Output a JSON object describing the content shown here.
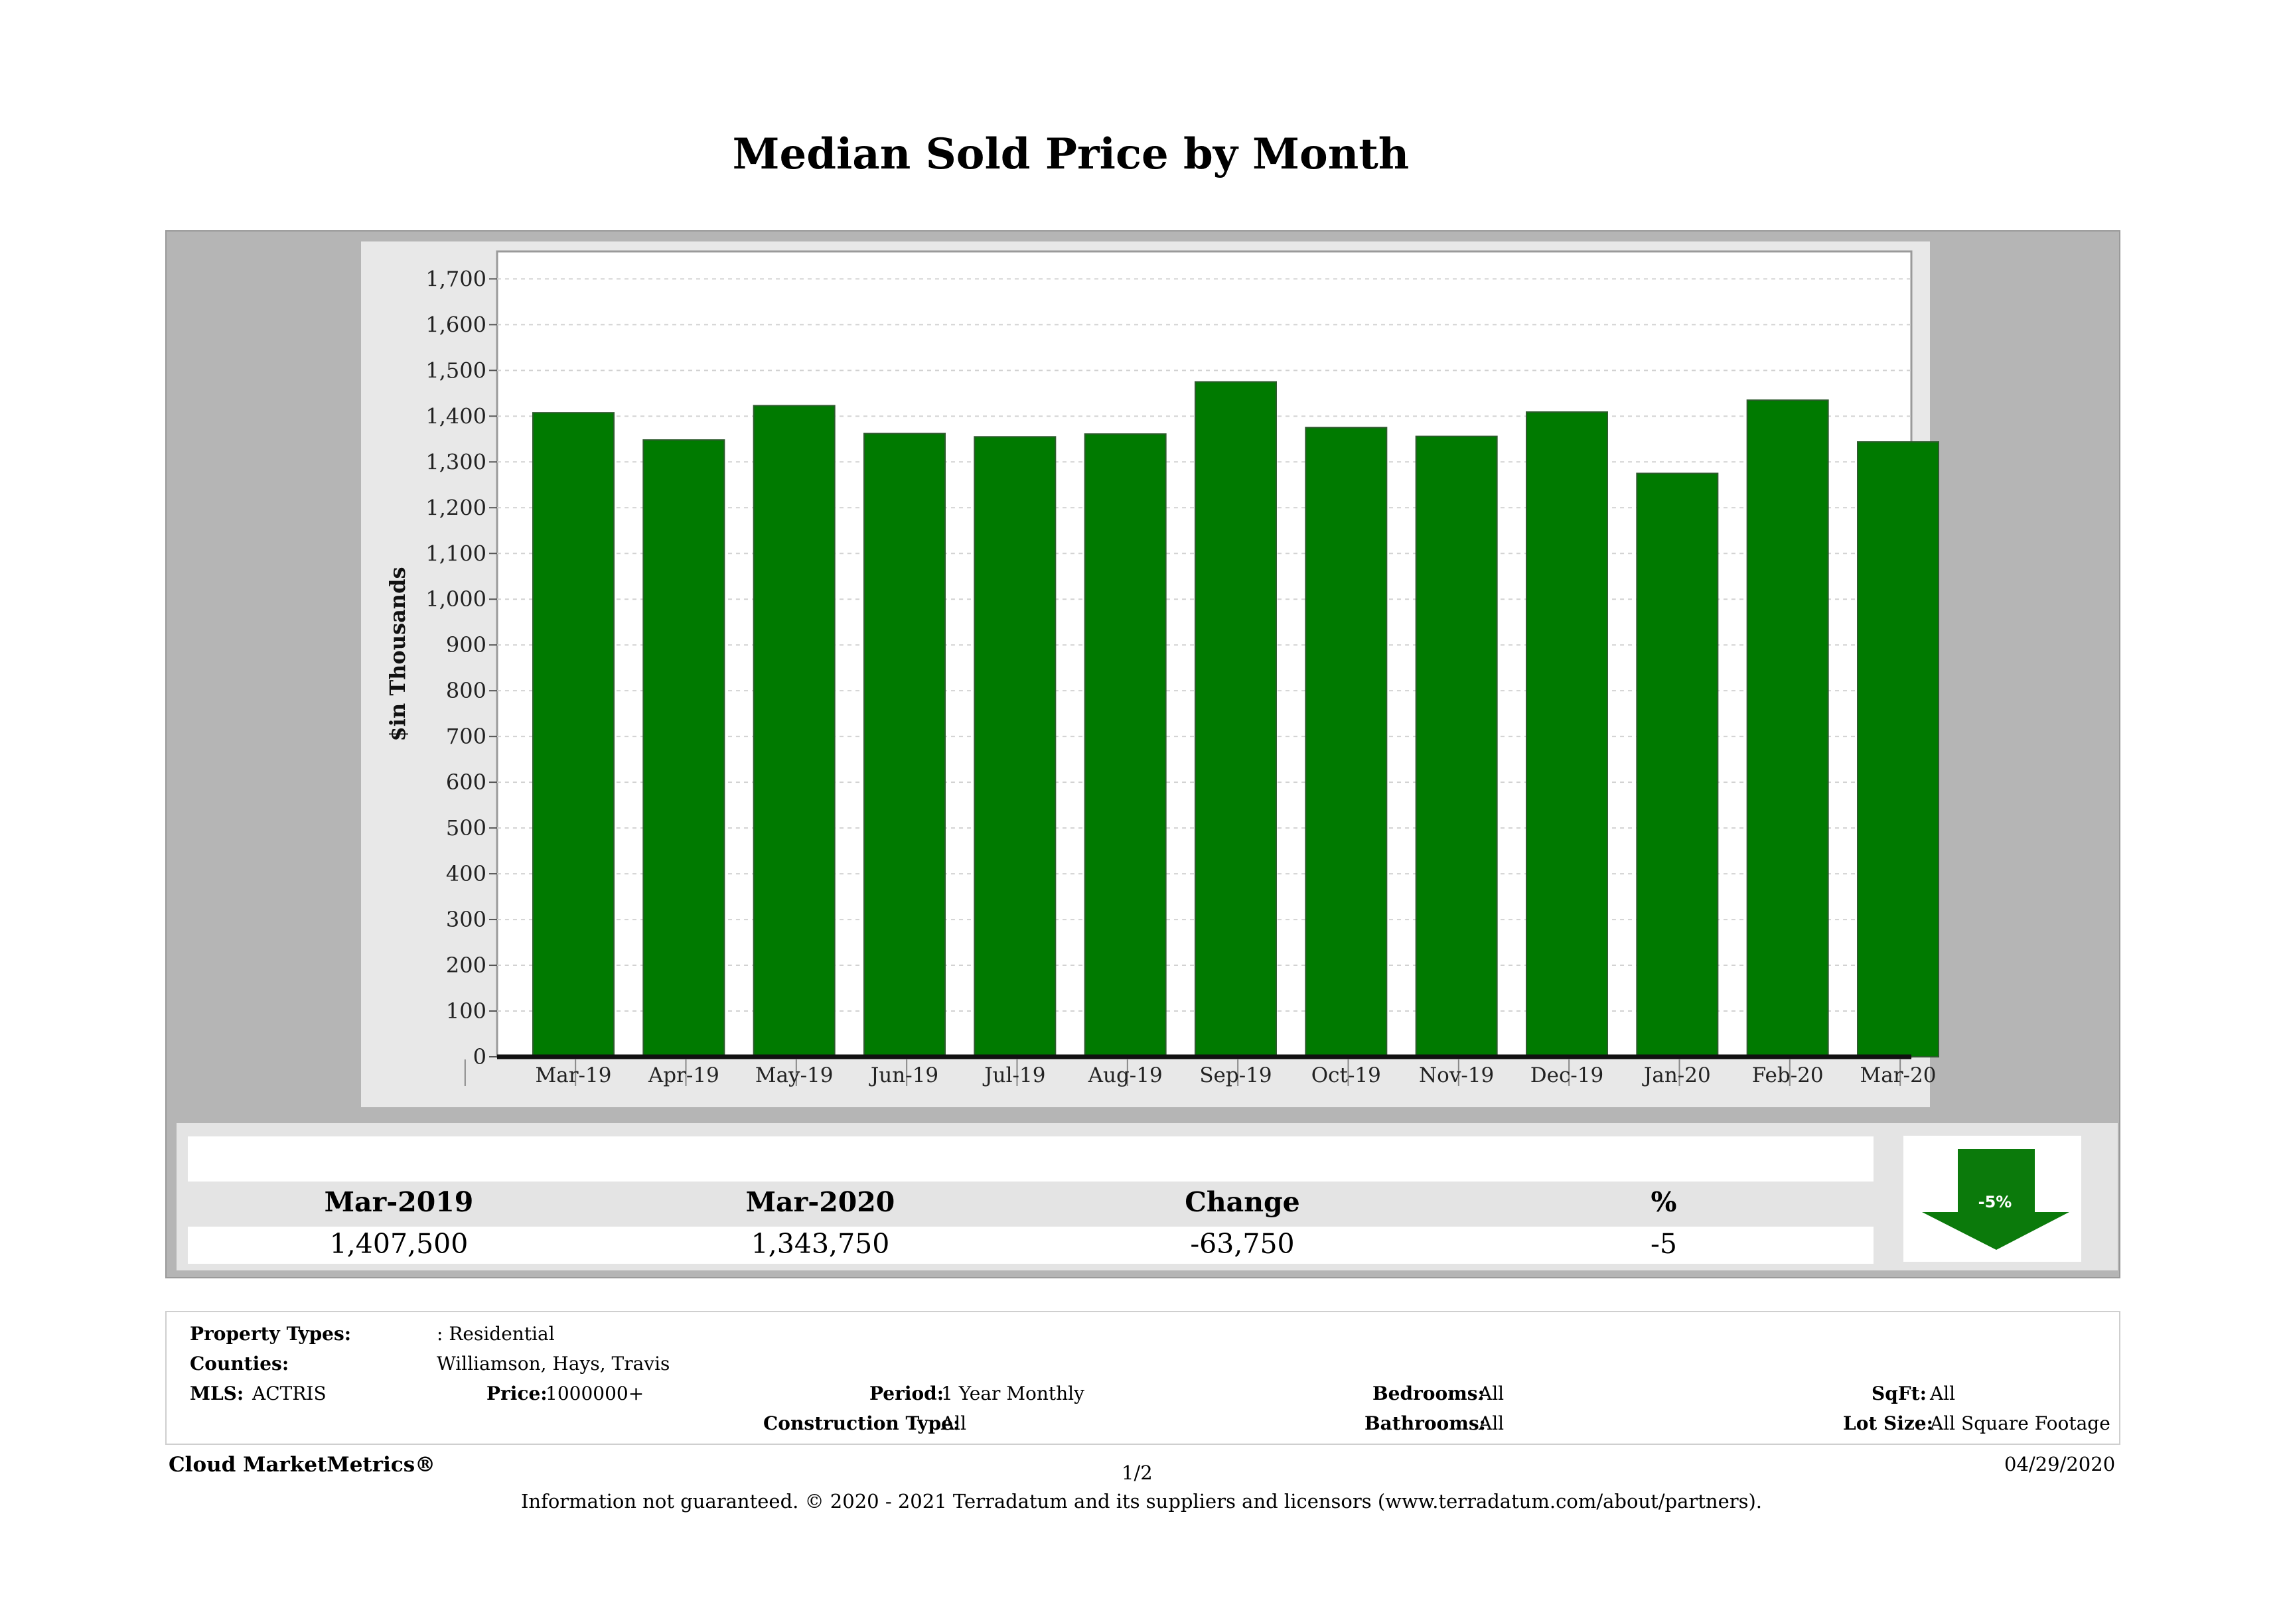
{
  "title": "Median Sold Price by Month",
  "chart_data": {
    "type": "bar",
    "categories": [
      "Mar-19",
      "Apr-19",
      "May-19",
      "Jun-19",
      "Jul-19",
      "Aug-19",
      "Sep-19",
      "Oct-19",
      "Nov-19",
      "Dec-19",
      "Jan-20",
      "Feb-20",
      "Mar-20"
    ],
    "values": [
      1407.5,
      1348,
      1423,
      1362,
      1355,
      1361,
      1475,
      1375,
      1356,
      1409,
      1275,
      1435,
      1343.75
    ],
    "ylabel": "$in Thousands",
    "ylim": [
      0,
      1760
    ],
    "yticks": [
      "0",
      "100",
      "200",
      "300",
      "400",
      "500",
      "600",
      "700",
      "800",
      "900",
      "1,000",
      "1,100",
      "1,200",
      "1,300",
      "1,400",
      "1,500",
      "1,600",
      "1,700"
    ],
    "grid": true,
    "bar_color": "#007a00"
  },
  "summary": {
    "headers": [
      "Mar-2019",
      "Mar-2020",
      "Change",
      "%"
    ],
    "values": [
      "1,407,500",
      "1,343,750",
      "-63,750",
      "-5"
    ],
    "badge": "-5%"
  },
  "properties": {
    "property_types_label": "Property Types:",
    "property_types_value": ": Residential",
    "counties_label": "Counties:",
    "counties_value": "Williamson, Hays, Travis",
    "mls_label": "MLS:",
    "mls_value": "ACTRIS",
    "price_label": "Price:",
    "price_value": "1000000+",
    "period_label": "Period:",
    "period_value": "1 Year Monthly",
    "construction_label": "Construction Type:",
    "construction_value": "All",
    "bedrooms_label": "Bedrooms:",
    "bedrooms_value": "All",
    "bathrooms_label": "Bathrooms:",
    "bathrooms_value": "All",
    "sqft_label": "SqFt:",
    "sqft_value": "All",
    "lot_label": "Lot Size:",
    "lot_value": "All Square Footage"
  },
  "footer": {
    "brand": "Cloud MarketMetrics®",
    "page": "1/2",
    "date": "04/29/2020",
    "disclaimer": "Information not guaranteed. © 2020 - 2021 Terradatum and its suppliers and licensors (www.terradatum.com/about/partners)."
  }
}
